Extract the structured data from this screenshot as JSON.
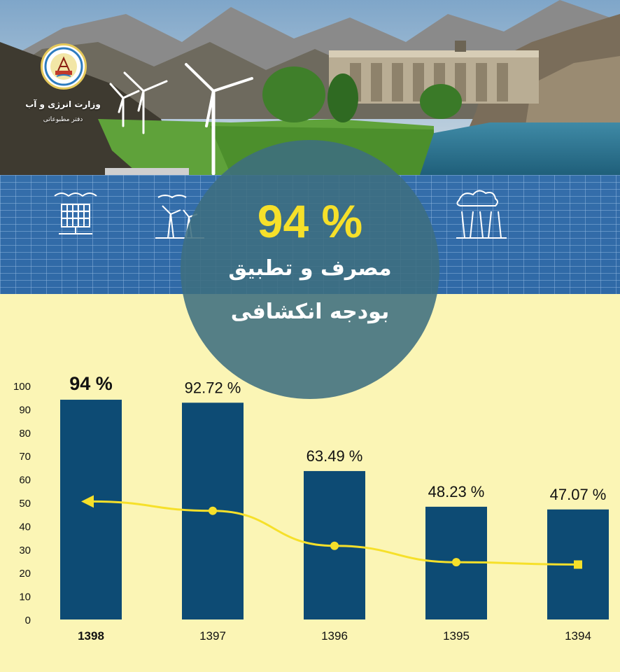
{
  "header": {
    "ministry_name": "وزارت انرژی و آب",
    "office_name": "دفتر مطبوعاتی",
    "headline_value": "94 %",
    "subtitle_line1": "مصرف و تطبیق",
    "subtitle_line2": "بودجه انکشافی"
  },
  "colors": {
    "background": "#fbf5b5",
    "bar": "#0d4b74",
    "line": "#f6e02a",
    "circle": "#3e6e80",
    "accent_text": "#f6e02a"
  },
  "chart_data": {
    "type": "bar",
    "categories": [
      "1398",
      "1397",
      "1396",
      "1395",
      "1394"
    ],
    "values": [
      94,
      92.72,
      63.49,
      48.23,
      47.07
    ],
    "data_labels": [
      "94 %",
      "92.72 %",
      "63.49 %",
      "48.23 %",
      "47.07 %"
    ],
    "highlight_category": "1398",
    "trend_line": {
      "values": [
        50.5,
        46.5,
        31.5,
        24.5,
        23.5
      ],
      "direction": "arrow toward 1398"
    },
    "ylim": [
      0,
      100
    ],
    "yticks": [
      0,
      10,
      20,
      30,
      40,
      50,
      60,
      70,
      80,
      90,
      100
    ],
    "title": "",
    "xlabel": "",
    "ylabel": "",
    "grid": false
  }
}
